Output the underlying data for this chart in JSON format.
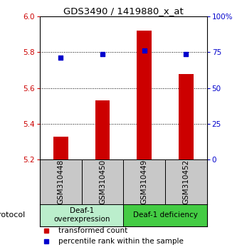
{
  "title": "GDS3490 / 1419880_x_at",
  "samples": [
    "GSM310448",
    "GSM310450",
    "GSM310449",
    "GSM310452"
  ],
  "bar_values": [
    5.33,
    5.53,
    5.92,
    5.68
  ],
  "dot_values": [
    71,
    73.5,
    76,
    73.5
  ],
  "bar_base": 5.2,
  "ylim_left": [
    5.2,
    6.0
  ],
  "ylim_right": [
    0,
    100
  ],
  "yticks_left": [
    5.2,
    5.4,
    5.6,
    5.8,
    6.0
  ],
  "yticks_right": [
    0,
    25,
    50,
    75,
    100
  ],
  "ytick_labels_right": [
    "0",
    "25",
    "50",
    "75",
    "100%"
  ],
  "bar_color": "#cc0000",
  "dot_color": "#0000cc",
  "protocol_groups": [
    {
      "label": "Deaf-1\noverexpression",
      "color": "#bbeecc"
    },
    {
      "label": "Deaf-1 deficiency",
      "color": "#44cc44"
    }
  ],
  "legend_items": [
    {
      "label": "transformed count",
      "color": "#cc0000"
    },
    {
      "label": "percentile rank within the sample",
      "color": "#0000cc"
    }
  ],
  "protocol_label": "protocol",
  "bar_width": 0.35,
  "tick_label_color_left": "#cc0000",
  "tick_label_color_right": "#0000cc",
  "sample_box_color": "#c8c8c8",
  "fig_width": 3.4,
  "fig_height": 3.54,
  "dpi": 100
}
